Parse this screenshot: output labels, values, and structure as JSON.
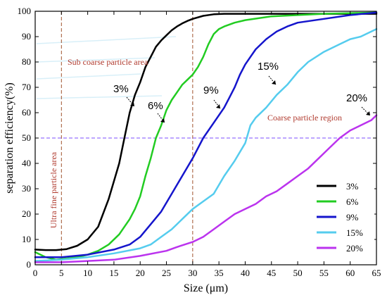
{
  "chart_data": {
    "type": "line",
    "xlabel": "Size (μm)",
    "ylabel": "separation efficiency(%)",
    "xlim": [
      0,
      65
    ],
    "ylim": [
      0,
      100
    ],
    "xticks": [
      0,
      5,
      10,
      15,
      20,
      25,
      30,
      35,
      40,
      45,
      50,
      55,
      60,
      65
    ],
    "yticks": [
      0,
      10,
      20,
      30,
      40,
      50,
      60,
      70,
      80,
      90,
      100
    ],
    "grid": false,
    "legend_position": "bottom-right",
    "reference_lines": [
      {
        "orientation": "vertical",
        "value": 5,
        "color": "#a0522d",
        "style": "dashed"
      },
      {
        "orientation": "vertical",
        "value": 30,
        "color": "#a0522d",
        "style": "dashed"
      },
      {
        "orientation": "horizontal",
        "value": 50,
        "color": "#7b4dff",
        "style": "dashed"
      }
    ],
    "region_labels": [
      {
        "text": "Sub coarse particle area"
      },
      {
        "text": "Ultra fine particle area"
      },
      {
        "text": "Coarse particle region"
      }
    ],
    "series": [
      {
        "name": "3%",
        "color": "#000000",
        "x": [
          0,
          2,
          4,
          6,
          8,
          10,
          12,
          14,
          16,
          17,
          18,
          19,
          20,
          21,
          22,
          23,
          24,
          25,
          26,
          27,
          28,
          29,
          30,
          32,
          34,
          36,
          40,
          50,
          65
        ],
        "y": [
          6,
          5.8,
          5.8,
          6.2,
          7.5,
          10,
          15,
          26,
          40,
          50,
          60,
          67,
          72,
          78,
          82,
          86,
          88.5,
          90.5,
          92.5,
          94,
          95.2,
          96.2,
          97,
          98.2,
          98.8,
          99,
          99,
          99,
          99
        ]
      },
      {
        "name": "6%",
        "color": "#22cc22",
        "x": [
          0,
          2,
          4,
          6,
          8,
          10,
          12,
          14,
          16,
          18,
          19,
          20,
          21,
          22,
          23,
          24,
          25,
          26,
          27,
          28,
          29,
          30,
          31,
          32,
          33,
          34,
          35,
          36,
          38,
          40,
          45,
          50,
          55,
          65
        ],
        "y": [
          5,
          3,
          2,
          2.5,
          3,
          4,
          5.5,
          8,
          12,
          18,
          22,
          27,
          35,
          42,
          50,
          55,
          61,
          65,
          68,
          71,
          73,
          75,
          78,
          82,
          87,
          91,
          93,
          94,
          95.5,
          96.5,
          98,
          98.5,
          99,
          99.5
        ]
      },
      {
        "name": "9%",
        "color": "#1515cc",
        "x": [
          0,
          5,
          10,
          15,
          18,
          20,
          22,
          24,
          26,
          28,
          30,
          32,
          34,
          36,
          37,
          38,
          39,
          40,
          41,
          42,
          44,
          46,
          48,
          50,
          55,
          60,
          65
        ],
        "y": [
          3,
          3,
          4,
          6,
          8,
          11,
          16,
          21,
          28,
          35,
          42,
          50,
          56,
          62,
          66,
          70,
          75,
          79,
          82,
          85,
          89,
          92,
          94,
          95.5,
          97,
          98.5,
          99.5
        ]
      },
      {
        "name": "15%",
        "color": "#55ccee",
        "x": [
          0,
          5,
          10,
          15,
          20,
          22,
          24,
          26,
          28,
          30,
          32,
          34,
          36,
          38,
          40,
          41,
          42,
          44,
          46,
          48,
          50,
          52,
          55,
          58,
          60,
          62,
          65
        ],
        "y": [
          1.5,
          2,
          3,
          4.5,
          6.5,
          8,
          11,
          14,
          18,
          22,
          25,
          28,
          35,
          41,
          48,
          55,
          58,
          62,
          67,
          71,
          76,
          80,
          84,
          87,
          89,
          90,
          93
        ]
      },
      {
        "name": "20%",
        "color": "#bb33ee",
        "x": [
          0,
          5,
          10,
          15,
          20,
          25,
          27,
          30,
          32,
          34,
          36,
          38,
          40,
          42,
          44,
          46,
          48,
          50,
          52,
          54,
          56,
          58,
          60,
          62,
          64,
          65
        ],
        "y": [
          1,
          1,
          1.5,
          2,
          3.5,
          5.5,
          7,
          9,
          11,
          14,
          17,
          20,
          22,
          24,
          27,
          29,
          32,
          35,
          38,
          42,
          46,
          50,
          53,
          55,
          57,
          59
        ]
      }
    ],
    "annotations": [
      {
        "text": "3%"
      },
      {
        "text": "6%"
      },
      {
        "text": "9%"
      },
      {
        "text": "15%"
      },
      {
        "text": "20%"
      }
    ]
  }
}
